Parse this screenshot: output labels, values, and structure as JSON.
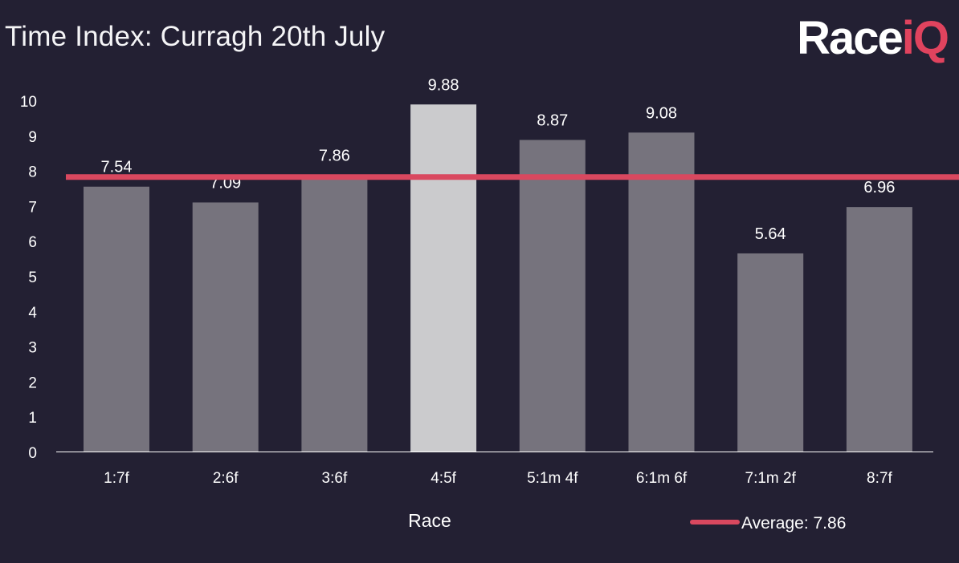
{
  "chart_data": {
    "type": "bar",
    "title": "Time Index: Curragh 20th July",
    "categories": [
      "1:7f",
      "2:6f",
      "3:6f",
      "4:5f",
      "5:1m 4f",
      "6:1m 6f",
      "7:1m 2f",
      "8:7f"
    ],
    "values": [
      7.54,
      7.09,
      7.86,
      9.88,
      8.87,
      9.08,
      5.64,
      6.96
    ],
    "value_labels": [
      "7.54",
      "7.09",
      "7.86",
      "9.88",
      "8.87",
      "9.08",
      "5.64",
      "6.96"
    ],
    "highlight_index": 3,
    "xlabel": "Race",
    "ylabel": "",
    "ylim": [
      0,
      10
    ],
    "yticks": [
      "0",
      "1",
      "2",
      "3",
      "4",
      "5",
      "6",
      "7",
      "8",
      "9",
      "10"
    ],
    "average": {
      "value": 7.86,
      "label": "Average: 7.86"
    },
    "legend_position": "bottom-right",
    "grid": false
  },
  "branding": {
    "logo_part1": "Race",
    "logo_part2": "iQ"
  },
  "colors": {
    "background": "#232033",
    "bar": "#76737d",
    "bar_highlight": "#cbcbcd",
    "average_line": "#d9485f",
    "text": "#ffffff",
    "axis_line": "#ffffff"
  }
}
